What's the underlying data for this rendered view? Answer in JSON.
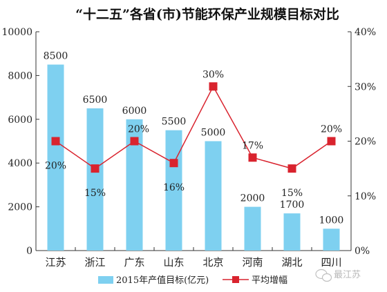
{
  "chart_data": {
    "type": "bar+line",
    "title": "“十二五”各省(市)节能环保产业规模目标对比",
    "categories": [
      "江苏",
      "浙江",
      "广东",
      "山东",
      "北京",
      "河南",
      "湖北",
      "四川"
    ],
    "series": [
      {
        "name": "2015年产值目标(亿元)",
        "type": "bar",
        "axis": "left",
        "color": "#7ed0f0",
        "values": [
          8500,
          6500,
          6000,
          5500,
          5000,
          2000,
          1700,
          1000
        ],
        "labels": [
          "8500",
          "6500",
          "6000",
          "5500",
          "5000",
          "2000",
          "1700",
          "1000"
        ]
      },
      {
        "name": "平均增幅",
        "type": "line",
        "axis": "right",
        "color": "#d9232e",
        "values": [
          20,
          15,
          20,
          16,
          30,
          17,
          15,
          20
        ],
        "labels": [
          "20%",
          "15%",
          "20%",
          "16%",
          "30%",
          "17%",
          "15%",
          "20%"
        ]
      }
    ],
    "y_left": {
      "min": 0,
      "max": 10000,
      "ticks": [
        "0",
        "2000",
        "4000",
        "6000",
        "8000",
        "10000"
      ]
    },
    "y_right": {
      "min": 0,
      "max": 40,
      "ticks": [
        "0%",
        "10%",
        "20%",
        "30%",
        "40%"
      ]
    },
    "grid": false,
    "legend_position": "bottom"
  },
  "watermark": {
    "text": "最江苏",
    "icon": "wechat-icon"
  }
}
